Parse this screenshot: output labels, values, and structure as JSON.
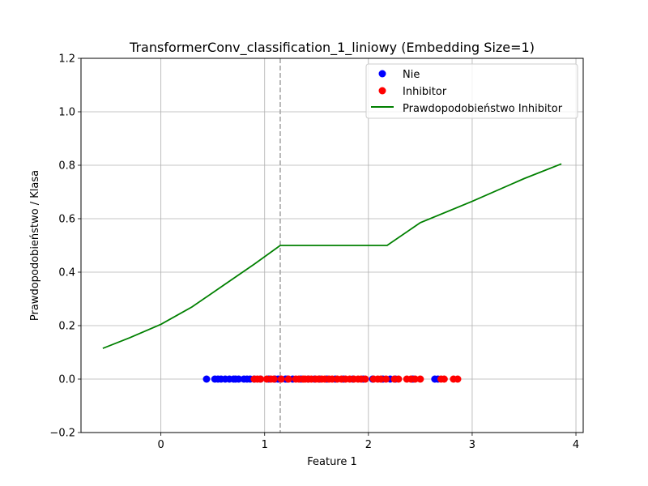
{
  "chart_data": {
    "type": "scatter",
    "title": "TransformerConv_classification_1_liniowy (Embedding Size=1)",
    "xlabel": "Feature 1",
    "ylabel": "Prawdopodobieństwo / Klasa",
    "xlim": [
      -0.77,
      4.07
    ],
    "ylim": [
      -0.2,
      1.2
    ],
    "xticks": [
      0,
      1,
      2,
      3,
      4
    ],
    "yticks": [
      -0.2,
      0.0,
      0.2,
      0.4,
      0.6,
      0.8,
      1.0,
      1.2
    ],
    "ytick_labels": [
      "−0.2",
      "0.0",
      "0.2",
      "0.4",
      "0.6",
      "0.8",
      "1.0",
      "1.2"
    ],
    "grid": true,
    "legend_position": "top-right",
    "threshold_x": 1.15,
    "series": [
      {
        "name": "Nie",
        "kind": "scatter",
        "color": "#0000ff",
        "x": [
          0.44,
          0.52,
          0.55,
          0.58,
          0.62,
          0.66,
          0.7,
          0.72,
          0.75,
          0.8,
          0.83,
          0.86,
          0.9,
          0.96,
          1.04,
          1.1,
          1.13,
          1.2,
          1.22,
          1.27,
          1.35,
          1.42,
          1.48,
          1.53,
          1.6,
          1.68,
          1.76,
          1.85,
          1.95,
          2.04,
          2.14,
          2.21,
          2.26,
          2.43,
          2.64,
          2.67
        ],
        "y": [
          0,
          0,
          0,
          0,
          0,
          0,
          0,
          0,
          0,
          0,
          0,
          0,
          0,
          0,
          0,
          0,
          0,
          0,
          0,
          0,
          0,
          0,
          0,
          0,
          0,
          0,
          0,
          0,
          0,
          0,
          0,
          0,
          0,
          0,
          0,
          0
        ]
      },
      {
        "name": "Inhibitor",
        "kind": "scatter",
        "color": "#ff0000",
        "x": [
          0.9,
          0.93,
          0.96,
          1.02,
          1.06,
          1.09,
          1.16,
          1.23,
          1.3,
          1.33,
          1.37,
          1.39,
          1.42,
          1.45,
          1.49,
          1.52,
          1.55,
          1.58,
          1.62,
          1.65,
          1.7,
          1.74,
          1.78,
          1.82,
          1.86,
          1.9,
          1.93,
          1.97,
          2.05,
          2.09,
          2.12,
          2.17,
          2.25,
          2.29,
          2.37,
          2.41,
          2.45,
          2.5,
          2.7,
          2.73,
          2.82,
          2.86
        ],
        "y": [
          0,
          0,
          0,
          0,
          0,
          0,
          0,
          0,
          0,
          0,
          0,
          0,
          0,
          0,
          0,
          0,
          0,
          0,
          0,
          0,
          0,
          0,
          0,
          0,
          0,
          0,
          0,
          0,
          0,
          0,
          0,
          0,
          0,
          0,
          0,
          0,
          0,
          0,
          0,
          0,
          0,
          0
        ]
      },
      {
        "name": "Prawdopodobieństwo Inhibitor",
        "kind": "line",
        "color": "#008000",
        "x": [
          -0.56,
          -0.3,
          0.0,
          0.3,
          0.6,
          0.9,
          1.15,
          2.18,
          2.5,
          3.0,
          3.5,
          3.86
        ],
        "y": [
          0.115,
          0.155,
          0.205,
          0.27,
          0.35,
          0.43,
          0.5,
          0.5,
          0.585,
          0.665,
          0.75,
          0.805
        ]
      }
    ]
  }
}
